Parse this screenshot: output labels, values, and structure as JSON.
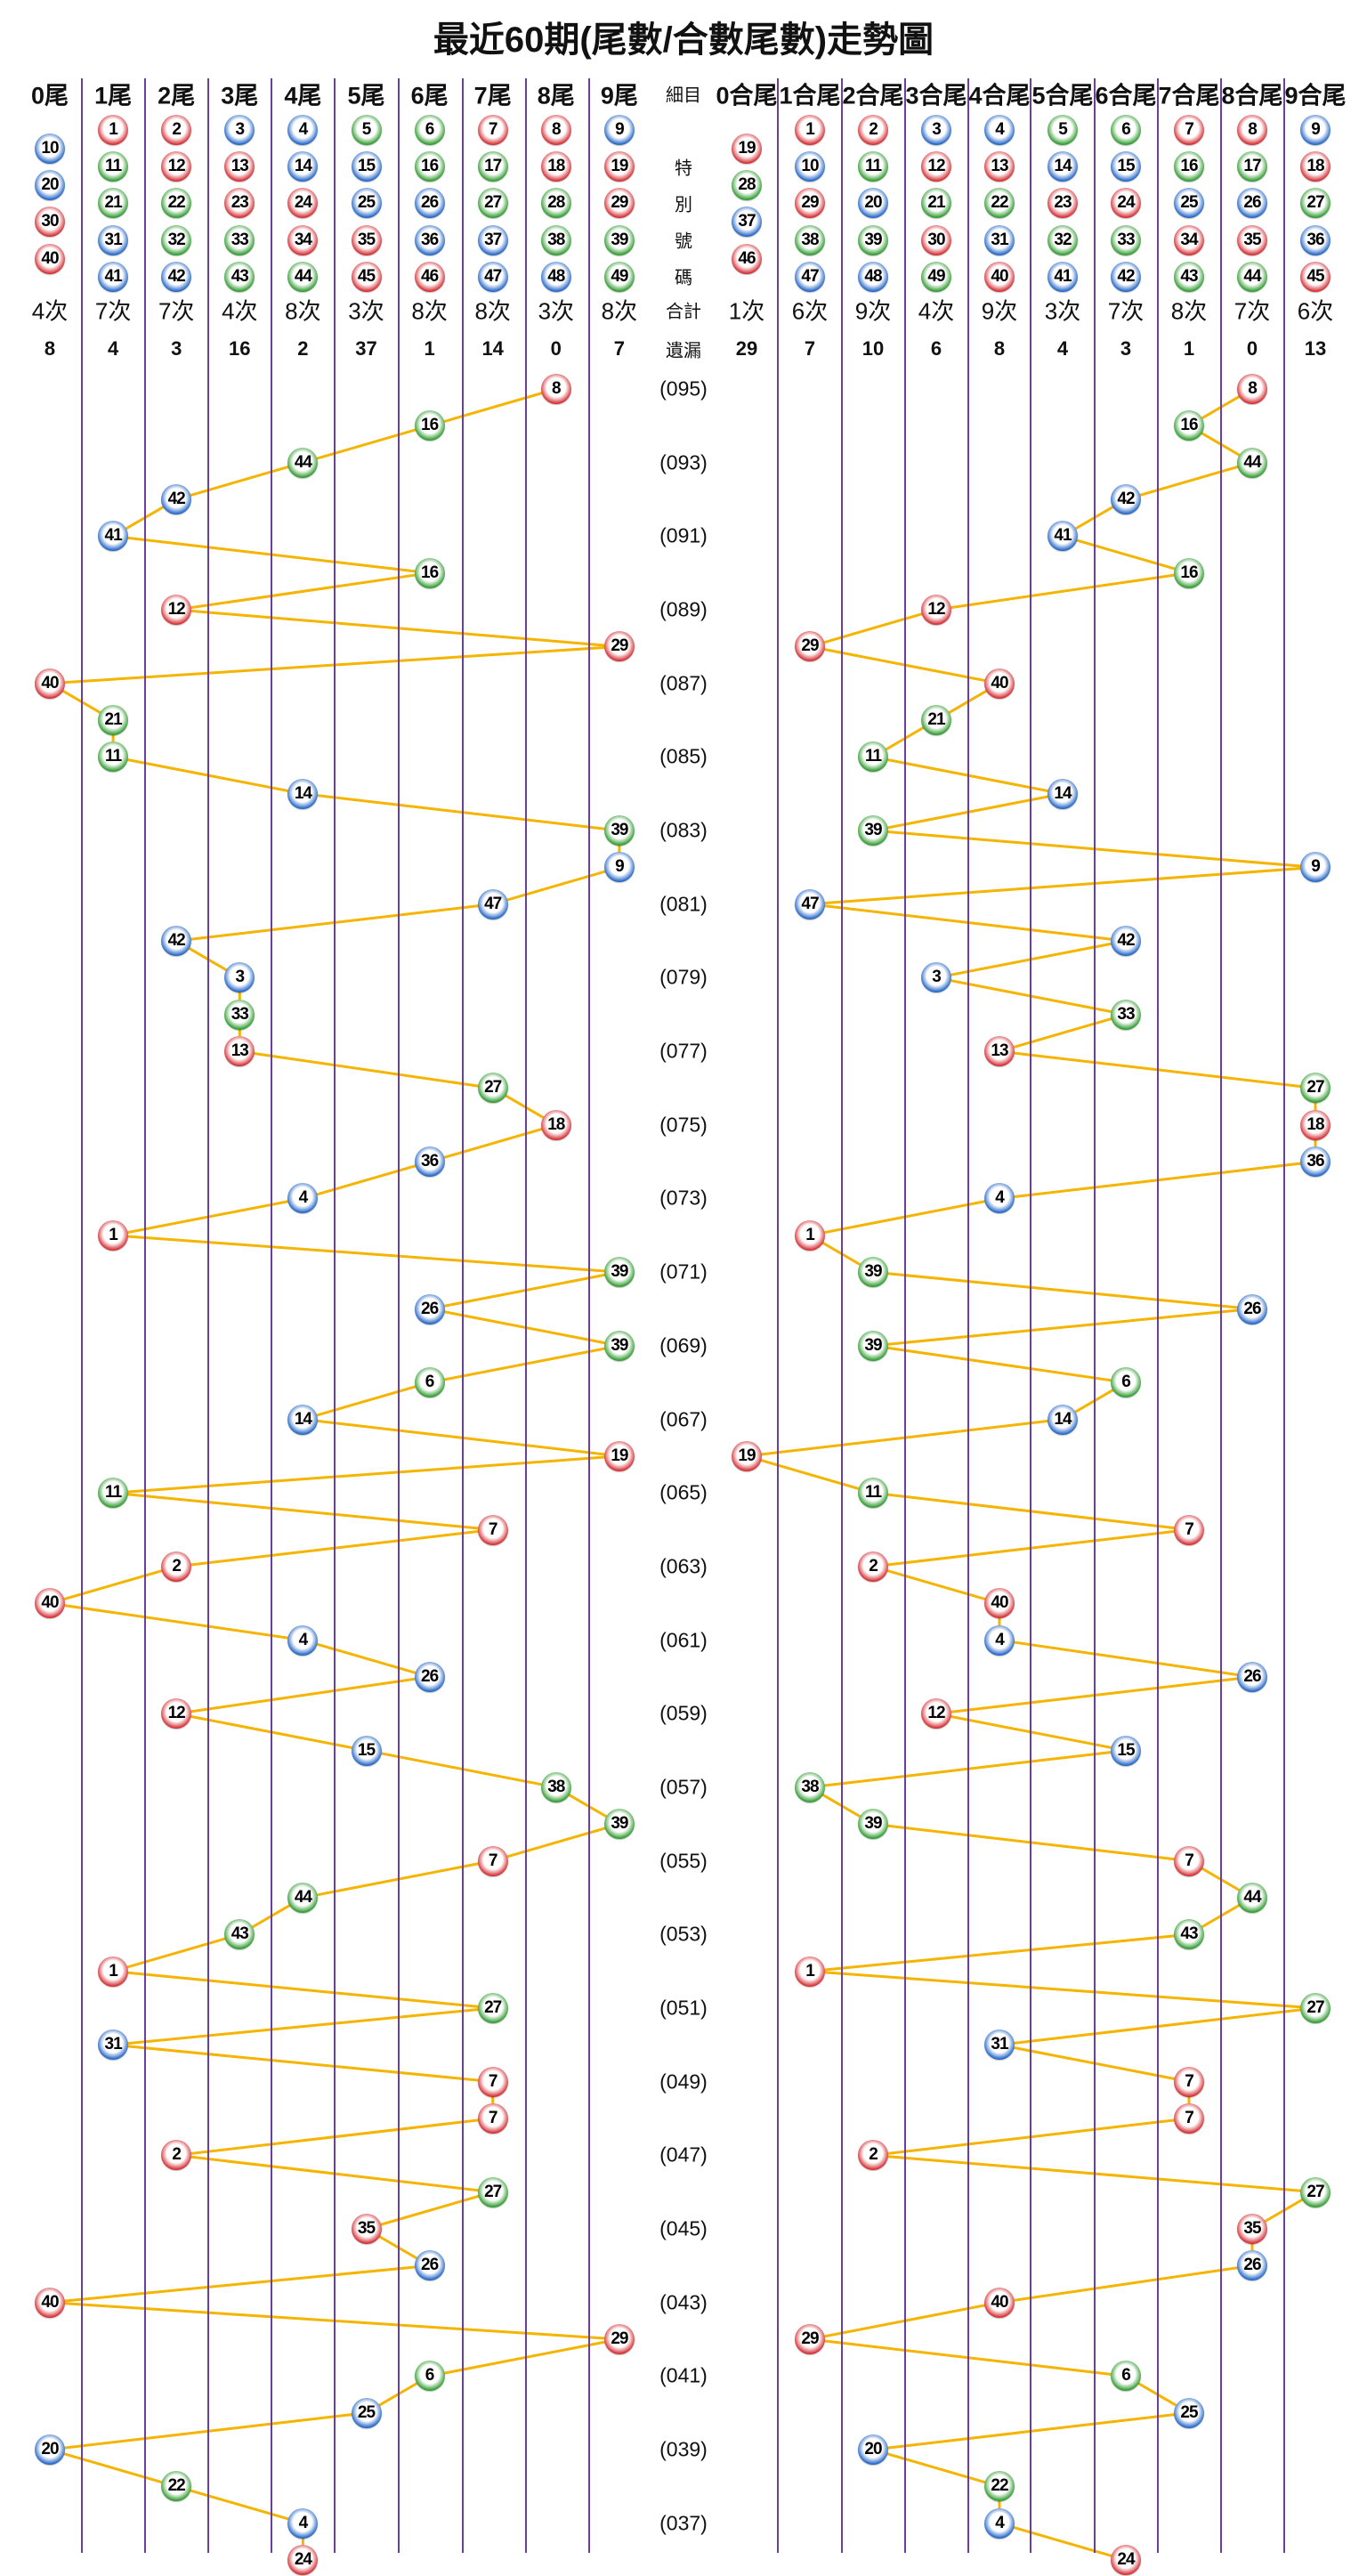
{
  "chart_data": {
    "type": "line",
    "title": "最近60期(尾數/合數尾數)走勢圖",
    "left_headers": [
      "0尾",
      "1尾",
      "2尾",
      "3尾",
      "4尾",
      "5尾",
      "6尾",
      "7尾",
      "8尾",
      "9尾"
    ],
    "right_headers": [
      "0合尾",
      "1合尾",
      "2合尾",
      "3合尾",
      "4合尾",
      "5合尾",
      "6合尾",
      "7合尾",
      "8合尾",
      "9合尾"
    ],
    "center_labels": {
      "detail": "細目",
      "special": [
        "特",
        "別",
        "號",
        "碼"
      ],
      "total": "合計",
      "missing": "遺漏"
    },
    "left_members": [
      [
        10,
        20,
        30,
        40
      ],
      [
        1,
        11,
        21,
        31,
        41
      ],
      [
        2,
        12,
        22,
        32,
        42
      ],
      [
        3,
        13,
        23,
        33,
        43
      ],
      [
        4,
        14,
        24,
        34,
        44
      ],
      [
        5,
        15,
        25,
        35,
        45
      ],
      [
        6,
        16,
        26,
        36,
        46
      ],
      [
        7,
        17,
        27,
        37,
        47
      ],
      [
        8,
        18,
        28,
        38,
        48
      ],
      [
        9,
        19,
        29,
        39,
        49
      ]
    ],
    "right_members": [
      [
        19,
        28,
        37,
        46
      ],
      [
        1,
        10,
        29,
        38,
        47
      ],
      [
        2,
        11,
        20,
        39,
        48
      ],
      [
        3,
        12,
        21,
        30,
        49
      ],
      [
        4,
        13,
        22,
        31,
        40
      ],
      [
        5,
        14,
        23,
        32,
        41
      ],
      [
        6,
        15,
        24,
        33,
        42
      ],
      [
        7,
        16,
        25,
        34,
        43
      ],
      [
        8,
        17,
        26,
        35,
        44
      ],
      [
        9,
        18,
        27,
        36,
        45
      ]
    ],
    "left_counts": [
      "4次",
      "7次",
      "7次",
      "4次",
      "8次",
      "3次",
      "8次",
      "8次",
      "3次",
      "8次"
    ],
    "left_missing": [
      "8",
      "4",
      "3",
      "16",
      "2",
      "37",
      "1",
      "14",
      "0",
      "7"
    ],
    "right_counts": [
      "1次",
      "6次",
      "9次",
      "4次",
      "9次",
      "3次",
      "7次",
      "8次",
      "7次",
      "6次"
    ],
    "right_missing": [
      "29",
      "7",
      "10",
      "6",
      "8",
      "4",
      "3",
      "1",
      "0",
      "13"
    ],
    "period_labels": [
      "(095)",
      "(093)",
      "(091)",
      "(089)",
      "(087)",
      "(085)",
      "(083)",
      "(081)",
      "(079)",
      "(077)",
      "(075)",
      "(073)",
      "(071)",
      "(069)",
      "(067)",
      "(065)",
      "(063)",
      "(061)",
      "(059)",
      "(057)",
      "(055)",
      "(053)",
      "(051)",
      "(049)",
      "(047)",
      "(045)",
      "(043)",
      "(041)",
      "(039)",
      "(037)"
    ],
    "numbers": [
      8,
      16,
      44,
      42,
      41,
      16,
      12,
      29,
      40,
      21,
      11,
      14,
      39,
      9,
      47,
      42,
      3,
      33,
      13,
      27,
      18,
      36,
      4,
      1,
      39,
      26,
      39,
      6,
      14,
      19,
      11,
      7,
      2,
      40,
      4,
      26,
      12,
      15,
      38,
      39,
      7,
      44,
      43,
      1,
      27,
      31,
      7,
      7,
      2,
      27,
      35,
      26,
      40,
      29,
      6,
      25,
      20,
      22,
      4,
      24
    ],
    "ball_colors": {
      "red": [
        1,
        2,
        7,
        8,
        12,
        13,
        18,
        19,
        23,
        24,
        29,
        30,
        34,
        35,
        40,
        45,
        46
      ],
      "blue": [
        3,
        4,
        9,
        10,
        14,
        15,
        20,
        25,
        26,
        31,
        36,
        37,
        41,
        42,
        47,
        48
      ],
      "green": [
        5,
        6,
        11,
        16,
        17,
        21,
        22,
        27,
        28,
        32,
        33,
        38,
        39,
        43,
        44,
        49
      ]
    },
    "colors": {
      "red": "#d42a30",
      "blue": "#1f63c6",
      "green": "#2c9a2c",
      "trend_line": "#f4b400",
      "column_line": "#6b3fa0"
    }
  }
}
